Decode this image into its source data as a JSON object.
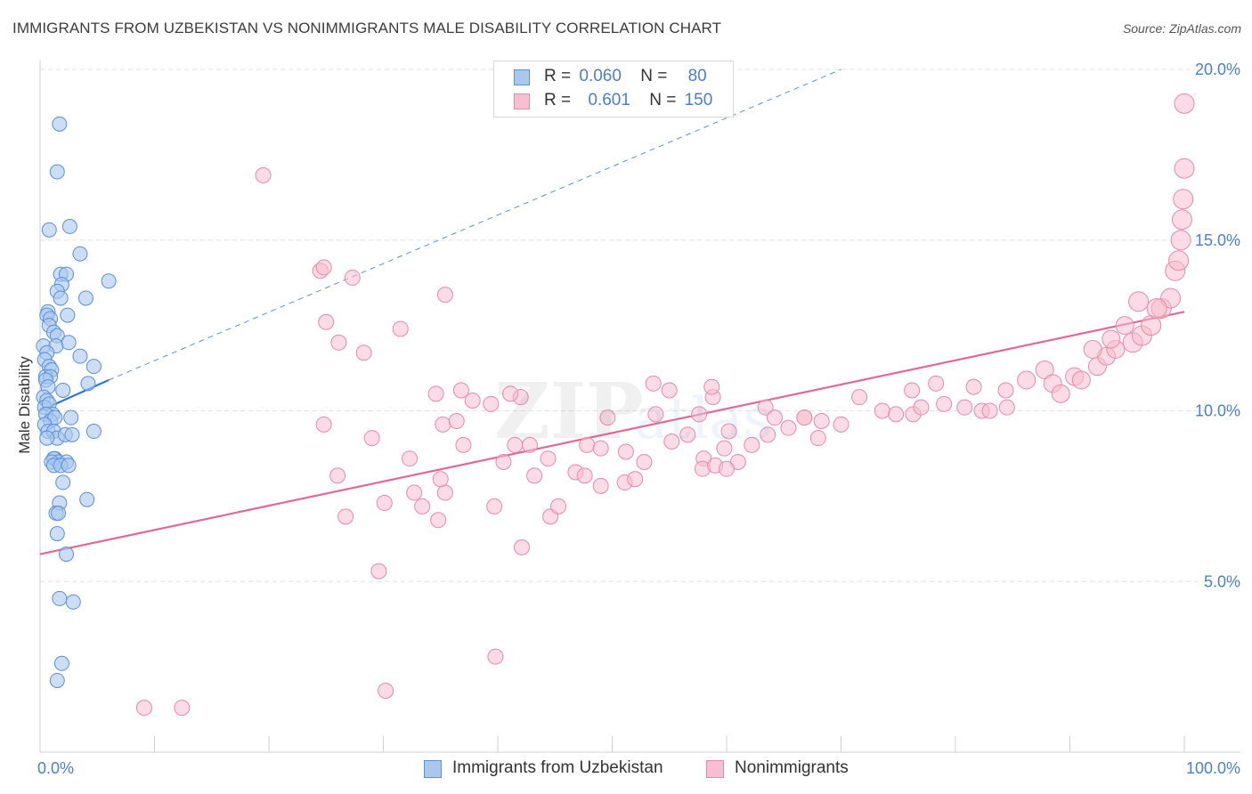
{
  "header": {
    "title": "IMMIGRANTS FROM UZBEKISTAN VS NONIMMIGRANTS MALE DISABILITY CORRELATION CHART",
    "source": "Source: ZipAtlas.com"
  },
  "legend": {
    "rows": [
      {
        "r_label": "R =",
        "r_value": "0.060",
        "n_label": "N =",
        "n_value": "80"
      },
      {
        "r_label": "R =",
        "r_value": "0.601",
        "n_label": "N =",
        "n_value": "150"
      }
    ]
  },
  "colors": {
    "blue_fill": "#a8c8f0",
    "blue_stroke": "#5b8fd6",
    "blue_line": "#3575d3",
    "pink_fill": "#f7bdd0",
    "pink_stroke": "#e98aa8",
    "pink_line": "#e0699a",
    "tick_text": "#4a7fd1",
    "grid": "#e2e2e2"
  },
  "watermark": {
    "main": "ZIP",
    "sub": "atlas"
  },
  "chart_data": {
    "type": "scatter",
    "title": "IMMIGRANTS FROM UZBEKISTAN VS NONIMMIGRANTS MALE DISABILITY CORRELATION CHART",
    "xlabel": "",
    "ylabel": "Male Disability",
    "xlim": [
      0,
      100
    ],
    "ylim": [
      0,
      20
    ],
    "x_tick_labels": [
      "0.0%",
      "100.0%"
    ],
    "y_ticks": [
      5,
      10,
      15,
      20
    ],
    "y_tick_labels": [
      "5.0%",
      "10.0%",
      "15.0%",
      "20.0%"
    ],
    "grid": true,
    "series": [
      {
        "name": "Immigrants from Uzbekistan",
        "r": 0.06,
        "n": 80,
        "trend": {
          "x": [
            0,
            6
          ],
          "y": [
            10.0,
            10.9
          ],
          "dashed_extension": {
            "x": [
              6,
              70
            ],
            "y": [
              10.9,
              20.0
            ]
          }
        },
        "points": [
          [
            1.7,
            18.4
          ],
          [
            1.5,
            17.0
          ],
          [
            2.6,
            15.4
          ],
          [
            0.8,
            15.3
          ],
          [
            3.5,
            14.6
          ],
          [
            1.8,
            14.0
          ],
          [
            2.3,
            14.0
          ],
          [
            1.9,
            13.7
          ],
          [
            1.5,
            13.5
          ],
          [
            1.8,
            13.3
          ],
          [
            4.0,
            13.3
          ],
          [
            6.0,
            13.8
          ],
          [
            0.7,
            12.9
          ],
          [
            0.6,
            12.8
          ],
          [
            0.9,
            12.7
          ],
          [
            2.4,
            12.8
          ],
          [
            0.8,
            12.5
          ],
          [
            1.2,
            12.3
          ],
          [
            1.5,
            12.2
          ],
          [
            0.3,
            11.9
          ],
          [
            1.4,
            11.9
          ],
          [
            2.5,
            12.0
          ],
          [
            0.6,
            11.7
          ],
          [
            0.4,
            11.5
          ],
          [
            3.5,
            11.6
          ],
          [
            0.8,
            11.3
          ],
          [
            1.0,
            11.2
          ],
          [
            4.7,
            11.3
          ],
          [
            0.5,
            11.0
          ],
          [
            0.9,
            11.0
          ],
          [
            0.5,
            10.9
          ],
          [
            0.7,
            10.7
          ],
          [
            4.2,
            10.8
          ],
          [
            2.0,
            10.6
          ],
          [
            0.3,
            10.4
          ],
          [
            0.6,
            10.3
          ],
          [
            0.4,
            10.1
          ],
          [
            0.8,
            10.2
          ],
          [
            1.1,
            9.9
          ],
          [
            0.5,
            9.9
          ],
          [
            0.9,
            9.7
          ],
          [
            1.3,
            9.8
          ],
          [
            2.7,
            9.8
          ],
          [
            0.4,
            9.6
          ],
          [
            0.7,
            9.4
          ],
          [
            1.2,
            9.4
          ],
          [
            1.5,
            9.2
          ],
          [
            2.2,
            9.3
          ],
          [
            2.8,
            9.3
          ],
          [
            4.7,
            9.4
          ],
          [
            0.6,
            9.2
          ],
          [
            1.3,
            8.6
          ],
          [
            1.2,
            8.6
          ],
          [
            1.6,
            8.5
          ],
          [
            2.3,
            8.5
          ],
          [
            1.0,
            8.5
          ],
          [
            1.2,
            8.4
          ],
          [
            1.8,
            8.4
          ],
          [
            2.5,
            8.4
          ],
          [
            2.0,
            7.9
          ],
          [
            4.1,
            7.4
          ],
          [
            1.7,
            7.3
          ],
          [
            1.4,
            7.0
          ],
          [
            1.6,
            7.0
          ],
          [
            1.5,
            6.4
          ],
          [
            2.3,
            5.8
          ],
          [
            1.7,
            4.5
          ],
          [
            2.9,
            4.4
          ],
          [
            1.9,
            2.6
          ],
          [
            1.5,
            2.1
          ]
        ]
      },
      {
        "name": "Nonimmigrants",
        "r": 0.601,
        "n": 150,
        "trend": {
          "x": [
            0,
            100
          ],
          "y": [
            5.8,
            12.9
          ]
        },
        "points": [
          [
            19.5,
            16.9
          ],
          [
            24.5,
            14.1
          ],
          [
            24.8,
            14.2
          ],
          [
            27.3,
            13.9
          ],
          [
            35.4,
            13.4
          ],
          [
            25.0,
            12.6
          ],
          [
            26.1,
            12.0
          ],
          [
            31.5,
            12.4
          ],
          [
            28.3,
            11.7
          ],
          [
            36.8,
            10.6
          ],
          [
            34.6,
            10.5
          ],
          [
            42.0,
            10.4
          ],
          [
            41.1,
            10.5
          ],
          [
            53.6,
            10.8
          ],
          [
            55.0,
            10.6
          ],
          [
            58.8,
            10.4
          ],
          [
            58.7,
            10.7
          ],
          [
            71.6,
            10.4
          ],
          [
            73.6,
            10.0
          ],
          [
            37.8,
            10.3
          ],
          [
            39.4,
            10.2
          ],
          [
            24.8,
            9.6
          ],
          [
            29.0,
            9.2
          ],
          [
            35.2,
            9.6
          ],
          [
            36.4,
            9.7
          ],
          [
            41.5,
            9.0
          ],
          [
            42.8,
            9.0
          ],
          [
            49.6,
            9.8
          ],
          [
            53.8,
            9.9
          ],
          [
            57.6,
            9.9
          ],
          [
            60.2,
            9.4
          ],
          [
            63.4,
            10.1
          ],
          [
            64.2,
            9.8
          ],
          [
            66.8,
            9.8
          ],
          [
            68.3,
            9.7
          ],
          [
            70.0,
            9.6
          ],
          [
            74.8,
            9.9
          ],
          [
            76.3,
            9.9
          ],
          [
            77.0,
            10.1
          ],
          [
            79.0,
            10.2
          ],
          [
            80.8,
            10.1
          ],
          [
            82.3,
            10.0
          ],
          [
            83.0,
            10.0
          ],
          [
            84.5,
            10.1
          ],
          [
            32.3,
            8.6
          ],
          [
            37.0,
            9.0
          ],
          [
            40.5,
            8.5
          ],
          [
            43.2,
            8.1
          ],
          [
            44.4,
            8.6
          ],
          [
            47.8,
            9.0
          ],
          [
            49.0,
            8.9
          ],
          [
            51.2,
            8.8
          ],
          [
            52.8,
            8.5
          ],
          [
            55.2,
            9.1
          ],
          [
            56.6,
            9.3
          ],
          [
            58.0,
            8.6
          ],
          [
            59.8,
            8.9
          ],
          [
            61.0,
            8.5
          ],
          [
            62.2,
            9.0
          ],
          [
            63.6,
            9.3
          ],
          [
            65.4,
            9.5
          ],
          [
            66.8,
            9.8
          ],
          [
            68.0,
            9.2
          ],
          [
            26.0,
            8.1
          ],
          [
            30.1,
            7.3
          ],
          [
            32.7,
            7.6
          ],
          [
            33.4,
            7.2
          ],
          [
            35.4,
            7.6
          ],
          [
            35.0,
            8.0
          ],
          [
            39.7,
            7.2
          ],
          [
            46.8,
            8.2
          ],
          [
            47.6,
            8.1
          ],
          [
            49.0,
            7.8
          ],
          [
            51.1,
            7.9
          ],
          [
            52.0,
            8.0
          ],
          [
            57.9,
            8.3
          ],
          [
            59.0,
            8.4
          ],
          [
            60.0,
            8.3
          ],
          [
            26.7,
            6.9
          ],
          [
            34.8,
            6.8
          ],
          [
            44.6,
            6.9
          ],
          [
            45.3,
            7.2
          ],
          [
            42.1,
            6.0
          ],
          [
            29.6,
            5.3
          ],
          [
            39.8,
            2.8
          ],
          [
            30.2,
            1.8
          ],
          [
            9.1,
            1.3
          ],
          [
            12.4,
            1.3
          ],
          [
            76.2,
            10.6
          ],
          [
            78.3,
            10.8
          ],
          [
            81.6,
            10.7
          ],
          [
            84.4,
            10.6
          ],
          [
            86.2,
            10.9
          ],
          [
            87.8,
            11.2
          ],
          [
            88.5,
            10.8
          ],
          [
            89.2,
            10.5
          ],
          [
            90.4,
            11.0
          ],
          [
            91.0,
            10.9
          ],
          [
            92.4,
            11.3
          ],
          [
            93.2,
            11.6
          ],
          [
            94.0,
            11.8
          ],
          [
            95.5,
            12.0
          ],
          [
            96.3,
            12.2
          ],
          [
            97.1,
            12.5
          ],
          [
            98.0,
            13.0
          ],
          [
            98.8,
            13.3
          ],
          [
            99.2,
            14.1
          ],
          [
            99.5,
            14.4
          ],
          [
            99.7,
            15.0
          ],
          [
            99.8,
            15.6
          ],
          [
            99.9,
            16.2
          ],
          [
            100.0,
            17.1
          ],
          [
            100.0,
            19.0
          ],
          [
            94.8,
            12.5
          ],
          [
            96.0,
            13.2
          ],
          [
            97.6,
            13.0
          ],
          [
            93.6,
            12.1
          ],
          [
            92.0,
            11.8
          ]
        ]
      }
    ]
  },
  "bottom_legend": {
    "items": [
      {
        "label": "Immigrants from Uzbekistan"
      },
      {
        "label": "Nonimmigrants"
      }
    ]
  }
}
